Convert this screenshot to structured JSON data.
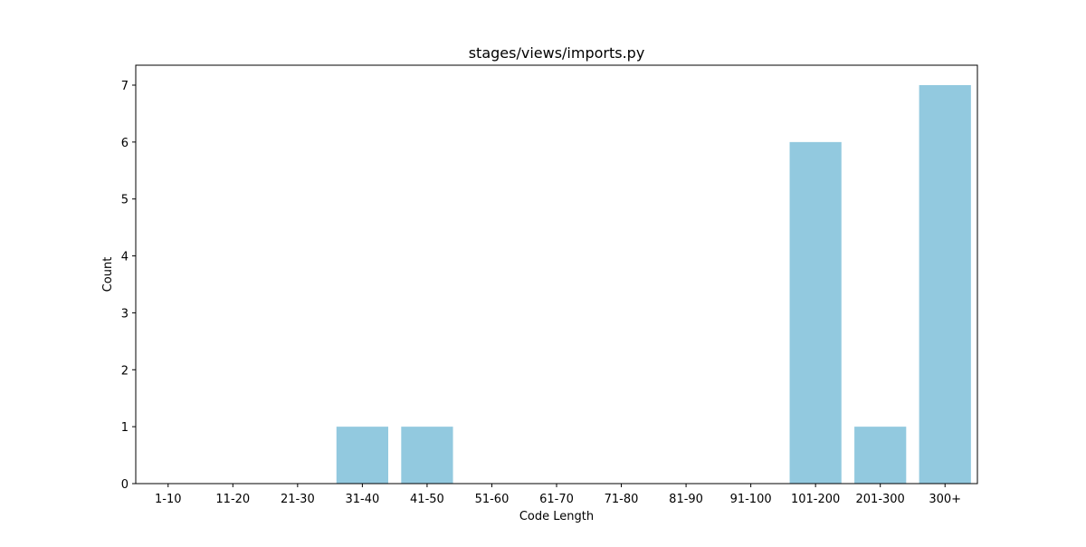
{
  "chart_data": {
    "type": "bar",
    "title": "stages/views/imports.py",
    "xlabel": "Code Length",
    "ylabel": "Count",
    "categories": [
      "1-10",
      "11-20",
      "21-30",
      "31-40",
      "41-50",
      "51-60",
      "61-70",
      "71-80",
      "81-90",
      "91-100",
      "101-200",
      "201-300",
      "300+"
    ],
    "values": [
      0,
      0,
      0,
      1,
      1,
      0,
      0,
      0,
      0,
      0,
      6,
      1,
      7
    ],
    "ylim": [
      0,
      7.35
    ],
    "yticks": [
      0,
      1,
      2,
      3,
      4,
      5,
      6,
      7
    ],
    "bar_color": "#92c9df",
    "grid": false,
    "legend": "none"
  }
}
